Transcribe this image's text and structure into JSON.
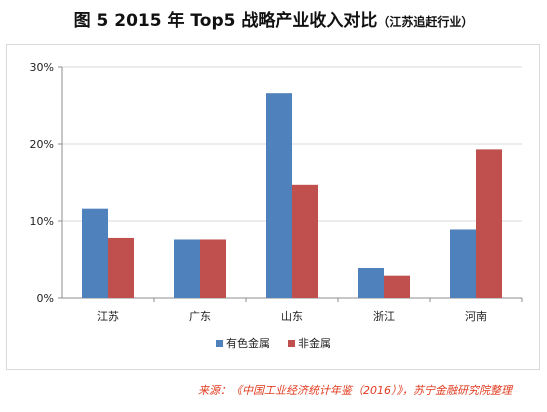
{
  "title": {
    "main": "图 5  2015 年 Top5 战略产业收入对比",
    "sub": "（江苏追赶行业）"
  },
  "chart_data": {
    "type": "bar",
    "categories": [
      "江苏",
      "广东",
      "山东",
      "浙江",
      "河南"
    ],
    "series": [
      {
        "name": "有色金属",
        "color": "#4f81bd",
        "values": [
          11.6,
          7.6,
          26.6,
          3.9,
          8.9
        ]
      },
      {
        "name": "非金属",
        "color": "#c0504d",
        "values": [
          7.8,
          7.6,
          14.7,
          2.9,
          19.3
        ]
      }
    ],
    "ylim": [
      0,
      30
    ],
    "yticks": [
      {
        "value": 0,
        "label": "0%"
      },
      {
        "value": 10,
        "label": "10%"
      },
      {
        "value": 20,
        "label": "20%"
      },
      {
        "value": 30,
        "label": "30%"
      }
    ],
    "grid": true,
    "legend_position": "bottom"
  },
  "source_note": "来源：《中国工业经济统计年鉴（2016）》，苏宁金融研究院整理"
}
